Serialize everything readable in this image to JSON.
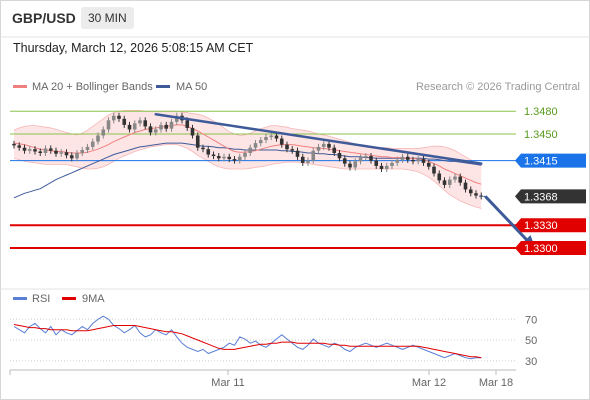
{
  "header": {
    "symbol": "GBP/USD",
    "timeframe": "30 MIN",
    "timestamp": "Thursday, March 12, 2026 5:08:15 AM CET"
  },
  "copyright": "Research © 2026 Trading Central",
  "colors": {
    "bollinger": "#f08080",
    "bollinger_fill": "#fde0e0",
    "ma50": "#3e5a99",
    "trendline": "#3e5a99",
    "resistance": "#8bc34a",
    "pivot": "#1a73e8",
    "support": "#e00000",
    "price_tag": "#333333",
    "rsi": "#5b7fd6",
    "rsi_9ma": "#e00000",
    "candle_up": "#888888",
    "candle_down": "#333333"
  },
  "chart_data": [
    {
      "type": "candlestick",
      "ylim": [
        1.325,
        1.35
      ],
      "legend": [
        {
          "name": "MA 20 + Bollinger Bands",
          "color": "#f08080"
        },
        {
          "name": "MA 50",
          "color": "#3e5a99"
        }
      ],
      "x_ticks": [
        "Mar 11",
        "Mar 12",
        "Mar 18"
      ],
      "levels": [
        {
          "label": "1.3480",
          "value": 1.348,
          "kind": "resistance"
        },
        {
          "label": "1.3450",
          "value": 1.345,
          "kind": "resistance"
        },
        {
          "label": "1.3415",
          "value": 1.3415,
          "kind": "pivot"
        },
        {
          "label": "1.3368",
          "value": 1.3368,
          "kind": "last-price"
        },
        {
          "label": "1.3330",
          "value": 1.333,
          "kind": "support"
        },
        {
          "label": "1.3300",
          "value": 1.33,
          "kind": "support"
        }
      ],
      "price": [
        1.3435,
        1.3432,
        1.3428,
        1.343,
        1.3427,
        1.3425,
        1.3431,
        1.3428,
        1.3424,
        1.3426,
        1.3422,
        1.3418,
        1.3425,
        1.3429,
        1.3433,
        1.344,
        1.3448,
        1.3456,
        1.3468,
        1.3474,
        1.347,
        1.3462,
        1.3456,
        1.3464,
        1.3468,
        1.346,
        1.3452,
        1.3456,
        1.3462,
        1.3457,
        1.3466,
        1.3474,
        1.3468,
        1.3458,
        1.3448,
        1.3432,
        1.343,
        1.3423,
        1.3421,
        1.3418,
        1.342,
        1.3417,
        1.3415,
        1.342,
        1.3425,
        1.3432,
        1.3438,
        1.3442,
        1.3446,
        1.3448,
        1.3444,
        1.3436,
        1.343,
        1.3428,
        1.342,
        1.3412,
        1.3415,
        1.3428,
        1.3433,
        1.3437,
        1.3432,
        1.3425,
        1.3418,
        1.3411,
        1.3406,
        1.3414,
        1.3419,
        1.3421,
        1.3415,
        1.3408,
        1.3404,
        1.3408,
        1.3412,
        1.3416,
        1.342,
        1.3416,
        1.3414,
        1.3417,
        1.3412,
        1.3407,
        1.3398,
        1.3389,
        1.3383,
        1.339,
        1.3394,
        1.3386,
        1.3377,
        1.3372,
        1.3369,
        1.3368
      ],
      "ma50": [
        1.3366,
        1.3369,
        1.3372,
        1.3374,
        1.3376,
        1.3378,
        1.3382,
        1.3386,
        1.339,
        1.3393,
        1.3396,
        1.3399,
        1.3402,
        1.3405,
        1.3408,
        1.3411,
        1.3414,
        1.3417,
        1.342,
        1.3423,
        1.3425,
        1.3427,
        1.3429,
        1.3431,
        1.3433,
        1.3434,
        1.3435,
        1.3436,
        1.3437,
        1.3438,
        1.3438,
        1.3438,
        1.3438,
        1.3437,
        1.3436,
        1.3435,
        1.3434,
        1.3434,
        1.3433,
        1.3432,
        1.3432,
        1.3431,
        1.343,
        1.343,
        1.3429,
        1.3429,
        1.3429,
        1.3429,
        1.3429,
        1.3429,
        1.3429,
        1.3428,
        1.3428,
        1.3427,
        1.3427,
        1.3426,
        1.3425,
        1.3425,
        1.3424,
        1.3424,
        1.3423,
        1.3423,
        1.3422,
        1.3421,
        1.342,
        1.342,
        1.342,
        1.3419,
        1.3419,
        1.3418,
        1.3418,
        1.3418,
        1.3418,
        1.3418,
        1.3418,
        1.3418,
        1.3418,
        1.3418,
        1.3418,
        1.3417,
        1.3417,
        1.3416,
        1.3415,
        1.3414,
        1.3414,
        1.3413,
        1.3412,
        1.3411,
        1.341,
        1.3409
      ],
      "ma20": [
        1.3438,
        1.3437,
        1.3436,
        1.3434,
        1.3432,
        1.343,
        1.3429,
        1.3428,
        1.3427,
        1.3427,
        1.3426,
        1.3425,
        1.3425,
        1.3425,
        1.3426,
        1.3428,
        1.343,
        1.3433,
        1.3436,
        1.344,
        1.3443,
        1.3446,
        1.3449,
        1.3452,
        1.3454,
        1.3456,
        1.3457,
        1.3458,
        1.3459,
        1.346,
        1.3461,
        1.3462,
        1.3462,
        1.346,
        1.3457,
        1.3454,
        1.345,
        1.3446,
        1.3442,
        1.3438,
        1.3434,
        1.343,
        1.3427,
        1.3426,
        1.3426,
        1.3427,
        1.3428,
        1.343,
        1.3432,
        1.3434,
        1.3435,
        1.3436,
        1.3436,
        1.3436,
        1.3435,
        1.3434,
        1.3433,
        1.3432,
        1.3431,
        1.3431,
        1.343,
        1.3429,
        1.3428,
        1.3427,
        1.3426,
        1.3425,
        1.3424,
        1.3423,
        1.3422,
        1.3421,
        1.342,
        1.342,
        1.3419,
        1.3419,
        1.3419,
        1.3418,
        1.3418,
        1.3417,
        1.3416,
        1.3414,
        1.3411,
        1.3408,
        1.3404,
        1.3401,
        1.3398,
        1.3395,
        1.3392,
        1.3389,
        1.3386,
        1.3384
      ],
      "bb_upper": [
        1.3455,
        1.3458,
        1.346,
        1.3461,
        1.3461,
        1.346,
        1.3459,
        1.3458,
        1.3456,
        1.3454,
        1.3452,
        1.345,
        1.3449,
        1.3451,
        1.3455,
        1.346,
        1.3465,
        1.347,
        1.3475,
        1.3478,
        1.348,
        1.3481,
        1.3481,
        1.3481,
        1.3481,
        1.348,
        1.348,
        1.348,
        1.348,
        1.348,
        1.348,
        1.348,
        1.3479,
        1.3478,
        1.3477,
        1.3476,
        1.3474,
        1.3471,
        1.3467,
        1.3463,
        1.3458,
        1.3453,
        1.345,
        1.3448,
        1.3449,
        1.3451,
        1.3454,
        1.3457,
        1.3459,
        1.3461,
        1.3461,
        1.346,
        1.3459,
        1.3457,
        1.3456,
        1.3455,
        1.3454,
        1.3452,
        1.345,
        1.3449,
        1.3447,
        1.3445,
        1.3443,
        1.3441,
        1.3439,
        1.3437,
        1.3436,
        1.3435,
        1.3434,
        1.3433,
        1.3432,
        1.3432,
        1.3431,
        1.3431,
        1.3431,
        1.3431,
        1.3431,
        1.3431,
        1.3432,
        1.3433,
        1.3434,
        1.3434,
        1.3433,
        1.3431,
        1.3428,
        1.3424,
        1.342,
        1.3416,
        1.3412,
        1.3408
      ],
      "bb_lower": [
        1.3418,
        1.3416,
        1.3414,
        1.3413,
        1.3412,
        1.3411,
        1.341,
        1.341,
        1.341,
        1.341,
        1.341,
        1.3408,
        1.3407,
        1.3405,
        1.3404,
        1.3404,
        1.3405,
        1.3407,
        1.341,
        1.3414,
        1.3418,
        1.3421,
        1.3424,
        1.3427,
        1.3429,
        1.3431,
        1.3433,
        1.3434,
        1.3435,
        1.3436,
        1.3436,
        1.3436,
        1.3434,
        1.3431,
        1.3427,
        1.3422,
        1.3418,
        1.3414,
        1.341,
        1.3407,
        1.3405,
        1.3404,
        1.3404,
        1.3404,
        1.3404,
        1.3405,
        1.3406,
        1.3407,
        1.3408,
        1.341,
        1.3411,
        1.3412,
        1.3413,
        1.3413,
        1.3413,
        1.3412,
        1.3411,
        1.341,
        1.3409,
        1.3408,
        1.3407,
        1.3406,
        1.3405,
        1.3404,
        1.3404,
        1.3404,
        1.3404,
        1.3404,
        1.3404,
        1.3404,
        1.3404,
        1.3404,
        1.3404,
        1.3404,
        1.3404,
        1.3403,
        1.3402,
        1.34,
        1.3397,
        1.3393,
        1.3388,
        1.3382,
        1.3376,
        1.337,
        1.3366,
        1.3362,
        1.3359,
        1.3356,
        1.3354,
        1.3352
      ],
      "trendline": {
        "from_index": 27,
        "from_value": 1.3476,
        "to_index": 89,
        "to_value": 1.3411
      },
      "forecast_arrow": {
        "from_index": 89,
        "from_value": 1.3368,
        "to_index": 99,
        "to_value": 1.3301
      }
    },
    {
      "type": "line",
      "ylim": [
        25,
        77
      ],
      "y_ticks": [
        70,
        50,
        30
      ],
      "legend": [
        {
          "name": "RSI",
          "color": "#5b7fd6"
        },
        {
          "name": "9MA",
          "color": "#e00000"
        }
      ],
      "series": [
        {
          "name": "RSI",
          "values": [
            63,
            60,
            57,
            63,
            66,
            61,
            57,
            63,
            55,
            60,
            57,
            55,
            59,
            63,
            60,
            66,
            70,
            73,
            70,
            64,
            61,
            57,
            60,
            64,
            57,
            53,
            55,
            60,
            57,
            55,
            60,
            53,
            47,
            43,
            41,
            39,
            41,
            37,
            39,
            41,
            43,
            47,
            45,
            53,
            51,
            47,
            49,
            45,
            43,
            47,
            51,
            55,
            51,
            47,
            43,
            41,
            45,
            51,
            47,
            45,
            43,
            47,
            45,
            41,
            39,
            43,
            45,
            47,
            45,
            43,
            45,
            47,
            45,
            43,
            41,
            43,
            45,
            43,
            41,
            39,
            37,
            35,
            33,
            35,
            37,
            35,
            33,
            32,
            33,
            33
          ]
        },
        {
          "name": "9MA",
          "values": [
            65,
            64,
            63,
            62,
            62,
            61,
            61,
            60,
            60,
            60,
            60,
            59,
            59,
            59,
            59,
            60,
            61,
            62,
            63,
            64,
            64,
            64,
            64,
            64,
            63,
            62,
            61,
            60,
            59,
            58,
            58,
            57,
            56,
            54,
            52,
            50,
            48,
            46,
            44,
            42,
            41,
            41,
            41,
            42,
            43,
            44,
            45,
            46,
            46,
            47,
            47,
            48,
            48,
            48,
            47,
            47,
            47,
            47,
            47,
            47,
            46,
            46,
            45,
            45,
            44,
            44,
            44,
            44,
            44,
            44,
            44,
            44,
            44,
            44,
            44,
            44,
            44,
            44,
            43,
            42,
            41,
            40,
            39,
            38,
            37,
            36,
            35,
            34,
            34,
            33
          ]
        }
      ]
    }
  ]
}
